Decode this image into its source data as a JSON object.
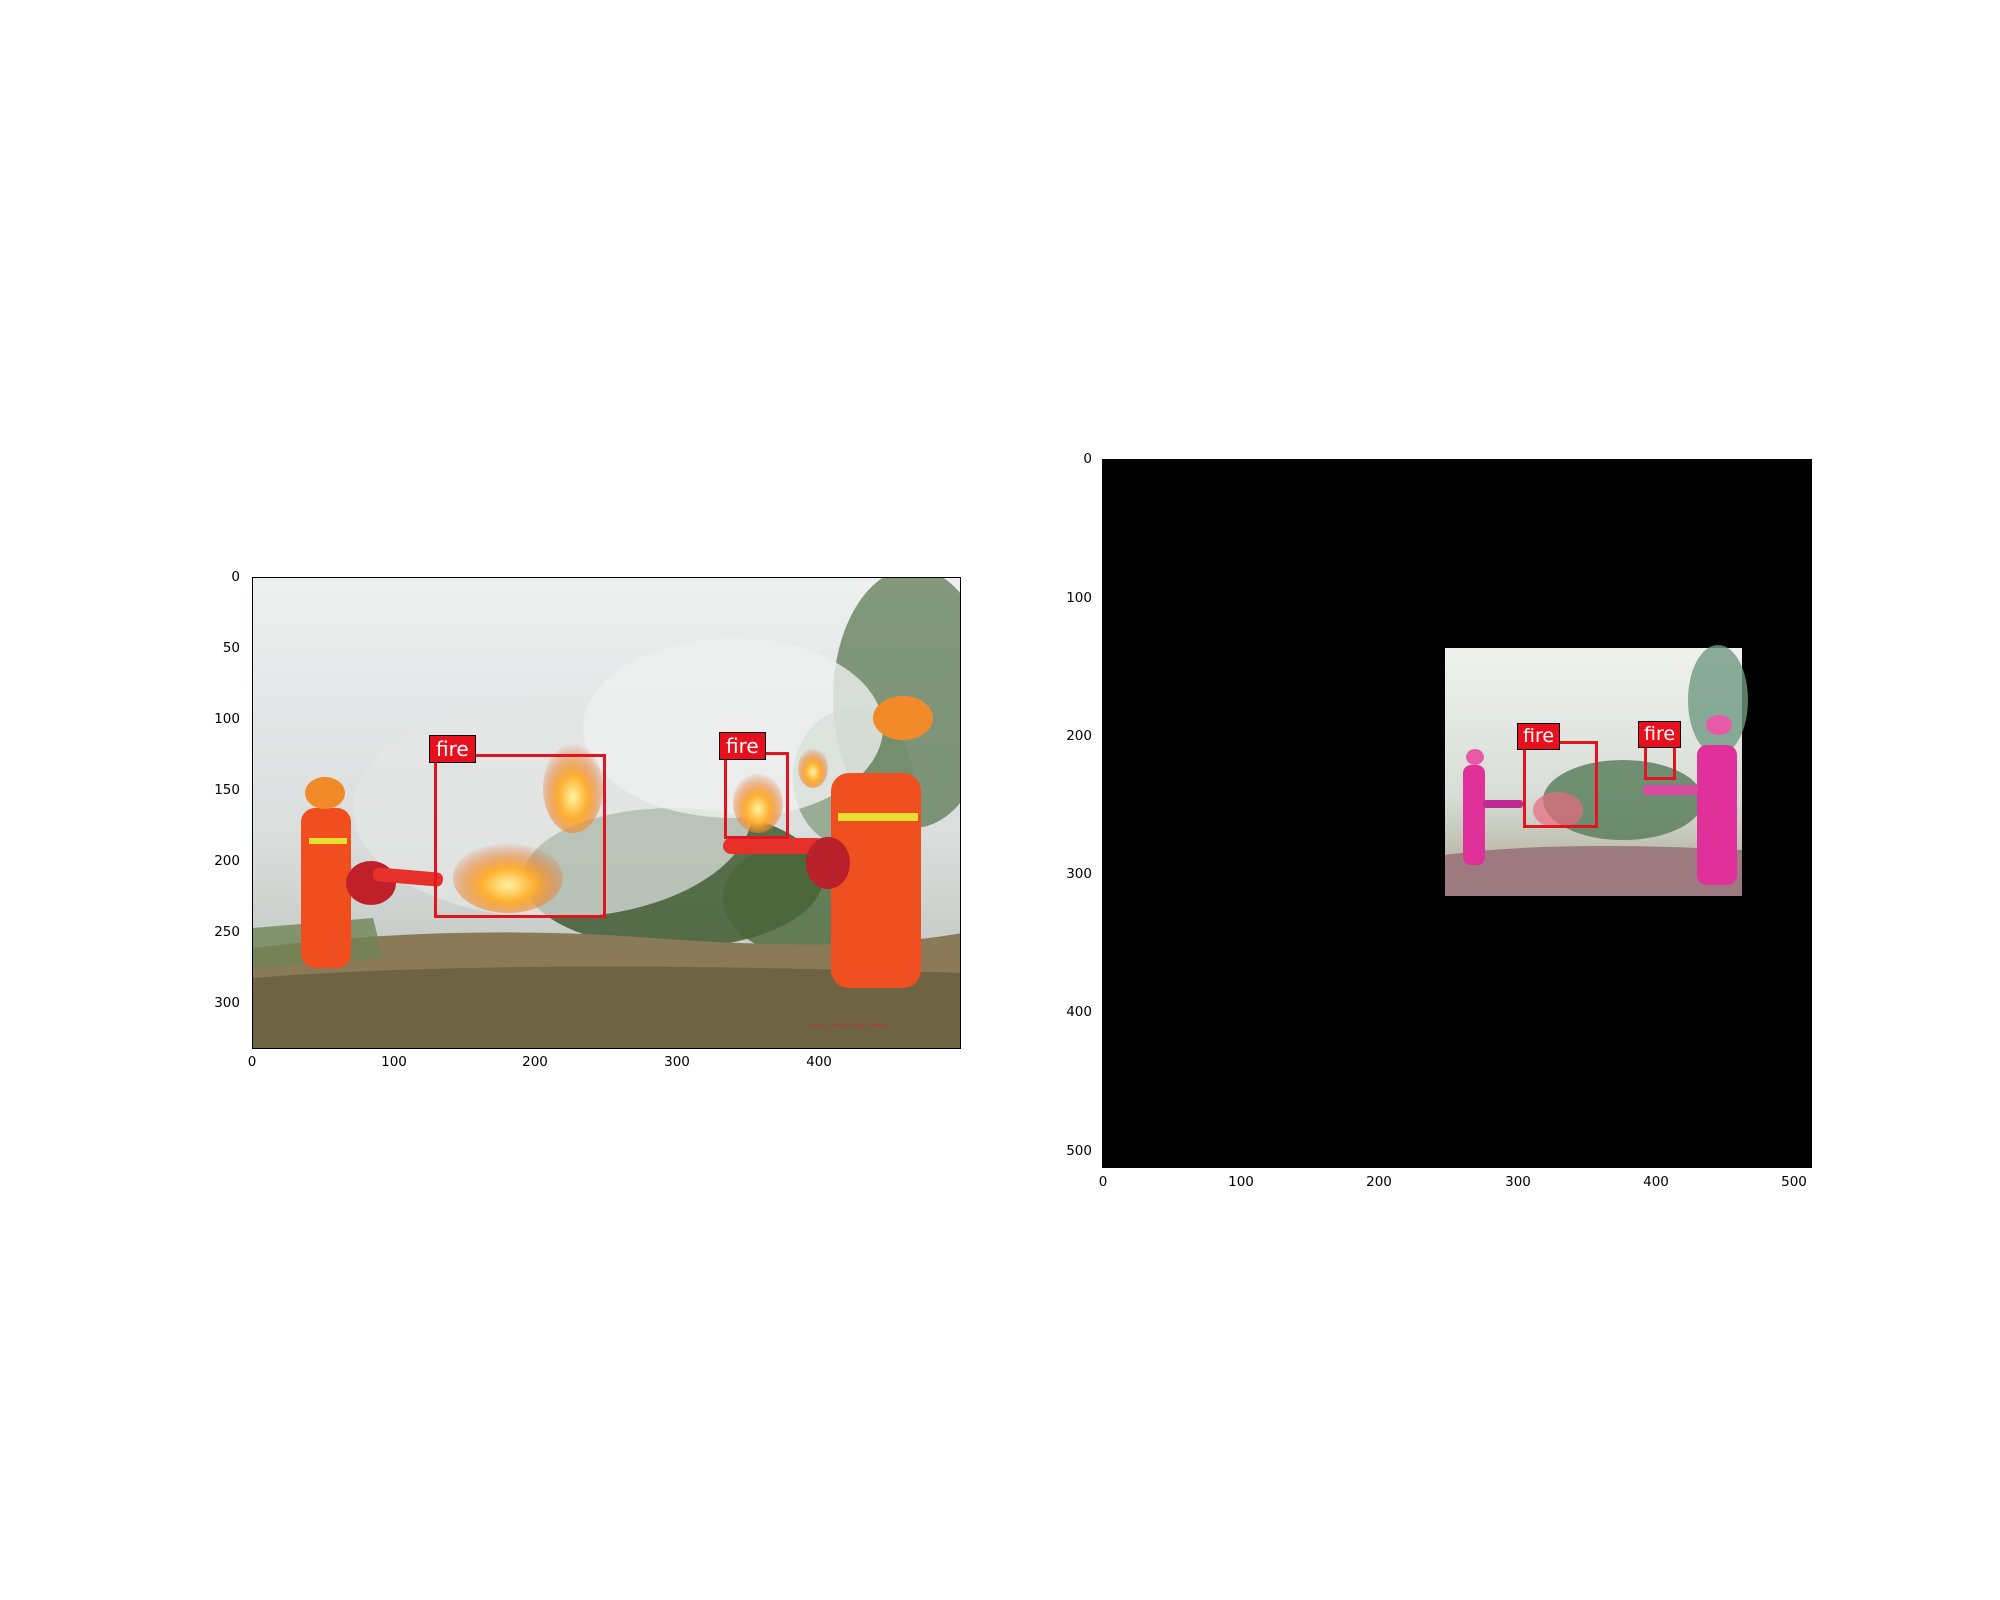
{
  "left_image": {
    "x_ticks": [
      "0",
      "100",
      "200",
      "300",
      "400"
    ],
    "y_ticks": [
      "0",
      "50",
      "100",
      "150",
      "200",
      "250",
      "300"
    ],
    "detections": [
      {
        "label": "fire"
      },
      {
        "label": "fire"
      }
    ],
    "colors": {
      "smoke": "#e9ecec",
      "vegetation": "#4c5f36",
      "ground": "#7c6a4a",
      "suit": "#f05020",
      "flame": "#ff8a1e",
      "box": "#e0151f"
    }
  },
  "right_image": {
    "x_ticks": [
      "0",
      "100",
      "200",
      "300",
      "400",
      "500"
    ],
    "y_ticks": [
      "0",
      "100",
      "200",
      "300",
      "400",
      "500"
    ],
    "detections": [
      {
        "label": "fire"
      },
      {
        "label": "fire"
      }
    ],
    "colors": {
      "background": "#000000",
      "suit": "#e0309a",
      "vegetation": "#5f7a62",
      "box": "#e0151f"
    }
  }
}
